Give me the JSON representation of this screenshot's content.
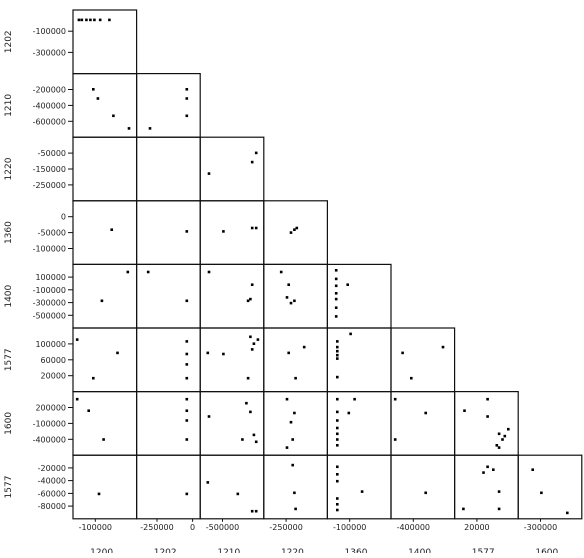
{
  "chart_data": {
    "type": "scatter",
    "layout": "lower-triangular scatterplot matrix",
    "variables": [
      "1200",
      "1202",
      "1210",
      "1220",
      "1360",
      "1400",
      "1577",
      "1600"
    ],
    "row_labels": [
      "1202",
      "1210",
      "1220",
      "1360",
      "1400",
      "1577",
      "1600",
      "1577"
    ],
    "row_tick_labels": [
      [
        "-100000",
        "-300000"
      ],
      [
        "-200000",
        "-400000",
        "-600000"
      ],
      [
        "-50000",
        "-150000",
        "-250000"
      ],
      [
        "0",
        "-50000",
        "-100000"
      ],
      [
        "100000",
        "-100000",
        "-300000",
        "-500000"
      ],
      [
        "100000",
        "60000",
        "20000"
      ],
      [
        "200000",
        "-100000",
        "-400000"
      ],
      [
        "-20000",
        "-40000",
        "-60000",
        "-80000"
      ]
    ],
    "col_tick_labels": [
      [
        "-100000"
      ],
      [
        "-250000",
        "0"
      ],
      [
        "-500000"
      ],
      [
        "-250000"
      ],
      [
        "-100000"
      ],
      [
        "-400000"
      ],
      [
        "20000"
      ],
      [
        "-300000"
      ]
    ],
    "col_labels": [
      "1200",
      "1202",
      "1210",
      "1220",
      "1360",
      "1400",
      "1577",
      "1600"
    ],
    "cells": [
      {
        "r": 0,
        "c": 0,
        "points": [
          [
            0.1,
            0.88
          ],
          [
            0.18,
            0.88
          ],
          [
            0.25,
            0.88
          ],
          [
            0.32,
            0.88
          ],
          [
            0.42,
            0.88
          ],
          [
            0.58,
            0.88
          ],
          [
            0.05,
            0.88
          ]
        ]
      },
      {
        "r": 1,
        "c": 0,
        "points": [
          [
            0.3,
            0.78
          ],
          [
            0.38,
            0.62
          ],
          [
            0.65,
            0.32
          ],
          [
            0.92,
            0.1
          ]
        ]
      },
      {
        "r": 1,
        "c": 1,
        "points": [
          [
            0.18,
            0.1
          ],
          [
            0.82,
            0.78
          ],
          [
            0.82,
            0.62
          ],
          [
            0.82,
            0.32
          ]
        ]
      },
      {
        "r": 2,
        "c": 0,
        "points": []
      },
      {
        "r": 2,
        "c": 1,
        "points": []
      },
      {
        "r": 2,
        "c": 2,
        "points": [
          [
            0.1,
            0.42
          ],
          [
            0.85,
            0.62
          ],
          [
            0.92,
            0.78
          ]
        ]
      },
      {
        "r": 3,
        "c": 0,
        "points": [
          [
            0.62,
            0.55
          ]
        ]
      },
      {
        "r": 3,
        "c": 1,
        "points": [
          [
            0.82,
            0.52
          ]
        ]
      },
      {
        "r": 3,
        "c": 2,
        "points": [
          [
            0.35,
            0.52
          ],
          [
            0.85,
            0.58
          ],
          [
            0.92,
            0.58
          ]
        ]
      },
      {
        "r": 3,
        "c": 3,
        "points": [
          [
            0.42,
            0.5
          ],
          [
            0.48,
            0.55
          ],
          [
            0.52,
            0.58
          ]
        ]
      },
      {
        "r": 4,
        "c": 0,
        "points": [
          [
            0.9,
            0.92
          ],
          [
            0.45,
            0.42
          ]
        ]
      },
      {
        "r": 4,
        "c": 1,
        "points": [
          [
            0.15,
            0.92
          ],
          [
            0.82,
            0.42
          ]
        ]
      },
      {
        "r": 4,
        "c": 2,
        "points": [
          [
            0.1,
            0.92
          ],
          [
            0.85,
            0.7
          ],
          [
            0.82,
            0.45
          ],
          [
            0.78,
            0.42
          ]
        ]
      },
      {
        "r": 4,
        "c": 3,
        "points": [
          [
            0.25,
            0.92
          ],
          [
            0.35,
            0.48
          ],
          [
            0.42,
            0.38
          ],
          [
            0.48,
            0.42
          ],
          [
            0.38,
            0.7
          ]
        ]
      },
      {
        "r": 4,
        "c": 4,
        "points": [
          [
            0.1,
            0.95
          ],
          [
            0.1,
            0.8
          ],
          [
            0.1,
            0.68
          ],
          [
            0.1,
            0.55
          ],
          [
            0.1,
            0.45
          ],
          [
            0.1,
            0.3
          ],
          [
            0.1,
            0.15
          ],
          [
            0.3,
            0.7
          ]
        ]
      },
      {
        "r": 5,
        "c": 0,
        "points": [
          [
            0.02,
            0.85
          ],
          [
            0.72,
            0.62
          ],
          [
            0.3,
            0.18
          ]
        ]
      },
      {
        "r": 5,
        "c": 1,
        "points": [
          [
            0.82,
            0.82
          ],
          [
            0.82,
            0.6
          ],
          [
            0.82,
            0.42
          ],
          [
            0.82,
            0.18
          ]
        ]
      },
      {
        "r": 5,
        "c": 2,
        "points": [
          [
            0.08,
            0.62
          ],
          [
            0.35,
            0.6
          ],
          [
            0.82,
            0.9
          ],
          [
            0.88,
            0.78
          ],
          [
            0.85,
            0.68
          ],
          [
            0.95,
            0.85
          ],
          [
            0.78,
            0.18
          ]
        ]
      },
      {
        "r": 5,
        "c": 3,
        "points": [
          [
            0.38,
            0.62
          ],
          [
            0.65,
            0.72
          ],
          [
            0.5,
            0.18
          ]
        ]
      },
      {
        "r": 5,
        "c": 4,
        "points": [
          [
            0.12,
            0.82
          ],
          [
            0.12,
            0.72
          ],
          [
            0.12,
            0.65
          ],
          [
            0.12,
            0.58
          ],
          [
            0.12,
            0.52
          ],
          [
            0.12,
            0.2
          ],
          [
            0.35,
            0.95
          ]
        ]
      },
      {
        "r": 5,
        "c": 5,
        "points": [
          [
            0.15,
            0.62
          ],
          [
            0.3,
            0.18
          ],
          [
            0.85,
            0.72
          ]
        ]
      },
      {
        "r": 6,
        "c": 0,
        "points": [
          [
            0.02,
            0.92
          ],
          [
            0.22,
            0.72
          ],
          [
            0.48,
            0.22
          ]
        ]
      },
      {
        "r": 6,
        "c": 1,
        "points": [
          [
            0.82,
            0.92
          ],
          [
            0.82,
            0.72
          ],
          [
            0.82,
            0.55
          ],
          [
            0.82,
            0.22
          ]
        ]
      },
      {
        "r": 6,
        "c": 2,
        "points": [
          [
            0.1,
            0.62
          ],
          [
            0.75,
            0.85
          ],
          [
            0.82,
            0.7
          ],
          [
            0.88,
            0.3
          ],
          [
            0.92,
            0.18
          ],
          [
            0.68,
            0.22
          ]
        ]
      },
      {
        "r": 6,
        "c": 3,
        "points": [
          [
            0.35,
            0.92
          ],
          [
            0.48,
            0.68
          ],
          [
            0.42,
            0.52
          ],
          [
            0.45,
            0.22
          ],
          [
            0.35,
            0.08
          ]
        ]
      },
      {
        "r": 6,
        "c": 4,
        "points": [
          [
            0.12,
            0.92
          ],
          [
            0.12,
            0.7
          ],
          [
            0.12,
            0.55
          ],
          [
            0.12,
            0.42
          ],
          [
            0.12,
            0.32
          ],
          [
            0.12,
            0.22
          ],
          [
            0.12,
            0.12
          ],
          [
            0.42,
            0.92
          ],
          [
            0.32,
            0.68
          ]
        ]
      },
      {
        "r": 6,
        "c": 5,
        "points": [
          [
            0.02,
            0.92
          ],
          [
            0.55,
            0.68
          ],
          [
            0.02,
            0.22
          ]
        ]
      },
      {
        "r": 6,
        "c": 6,
        "points": [
          [
            0.12,
            0.72
          ],
          [
            0.52,
            0.92
          ],
          [
            0.52,
            0.62
          ],
          [
            0.72,
            0.32
          ],
          [
            0.78,
            0.22
          ],
          [
            0.82,
            0.28
          ],
          [
            0.68,
            0.12
          ],
          [
            0.72,
            0.08
          ],
          [
            0.88,
            0.4
          ]
        ]
      },
      {
        "r": 7,
        "c": 0,
        "points": [
          [
            0.4,
            0.38
          ]
        ]
      },
      {
        "r": 7,
        "c": 1,
        "points": [
          [
            0.82,
            0.38
          ]
        ]
      },
      {
        "r": 7,
        "c": 2,
        "points": [
          [
            0.08,
            0.58
          ],
          [
            0.6,
            0.38
          ],
          [
            0.85,
            0.08
          ],
          [
            0.92,
            0.08
          ]
        ]
      },
      {
        "r": 7,
        "c": 3,
        "points": [
          [
            0.45,
            0.88
          ],
          [
            0.48,
            0.4
          ],
          [
            0.5,
            0.12
          ]
        ]
      },
      {
        "r": 7,
        "c": 4,
        "points": [
          [
            0.12,
            0.85
          ],
          [
            0.12,
            0.72
          ],
          [
            0.12,
            0.6
          ],
          [
            0.12,
            0.3
          ],
          [
            0.12,
            0.2
          ],
          [
            0.12,
            0.1
          ],
          [
            0.55,
            0.42
          ]
        ]
      },
      {
        "r": 7,
        "c": 5,
        "points": [
          [
            0.55,
            0.4
          ]
        ]
      },
      {
        "r": 7,
        "c": 6,
        "points": [
          [
            0.52,
            0.85
          ],
          [
            0.62,
            0.8
          ],
          [
            0.45,
            0.75
          ],
          [
            0.72,
            0.42
          ],
          [
            0.1,
            0.12
          ],
          [
            0.72,
            0.12
          ]
        ]
      },
      {
        "r": 7,
        "c": 7,
        "points": [
          [
            0.2,
            0.8
          ],
          [
            0.35,
            0.4
          ],
          [
            0.8,
            0.05
          ]
        ]
      }
    ]
  }
}
